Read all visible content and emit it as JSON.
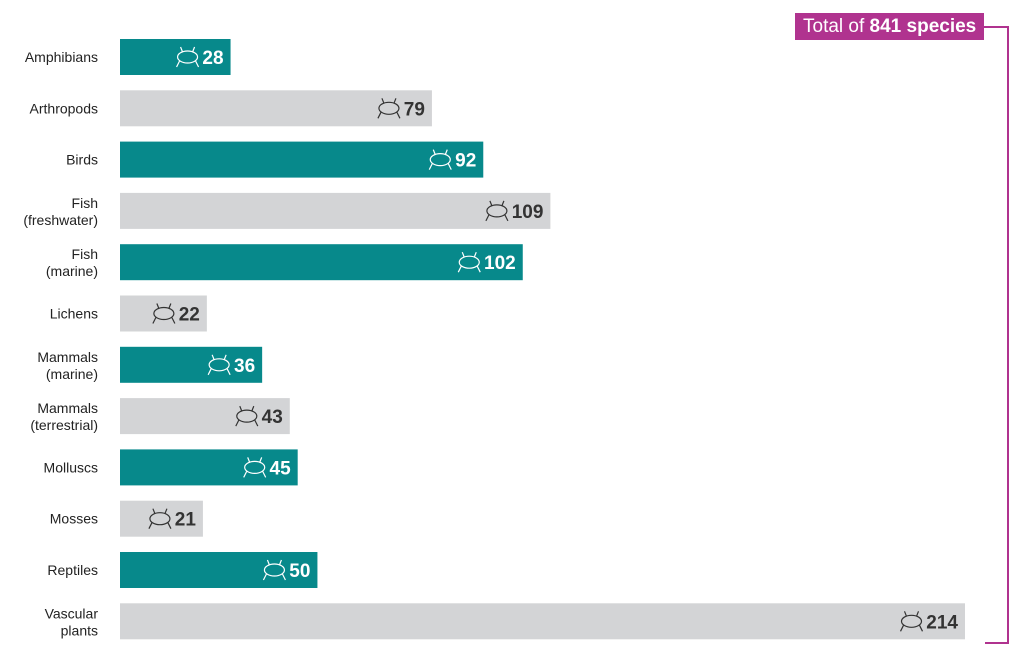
{
  "chart_data": {
    "type": "bar",
    "orientation": "horizontal",
    "categories": [
      "Amphibians",
      "Arthropods",
      "Birds",
      "Fish\n(freshwater)",
      "Fish\n(marine)",
      "Lichens",
      "Mammals\n(marine)",
      "Mammals\n(terrestrial)",
      "Molluscs",
      "Mosses",
      "Reptiles",
      "Vascular\nplants"
    ],
    "values": [
      28,
      79,
      92,
      109,
      102,
      22,
      36,
      43,
      45,
      21,
      50,
      214
    ],
    "icons": [
      "frog-icon",
      "crab-icon",
      "duck-icon",
      "fish-icon",
      "shark-icon",
      "lichen-icon",
      "whale-icon",
      "deer-icon",
      "shell-icon",
      "moss-icon",
      "snake-icon",
      "fern-icon"
    ],
    "bar_colors": [
      "#07898B",
      "#D3D4D6"
    ],
    "value_label_colors": [
      "#ffffff",
      "#333333"
    ],
    "xlim": [
      0,
      214
    ],
    "grid": false,
    "annotation": {
      "prefix": "Total of ",
      "bold": "841 species",
      "color": "#B0338F"
    }
  }
}
